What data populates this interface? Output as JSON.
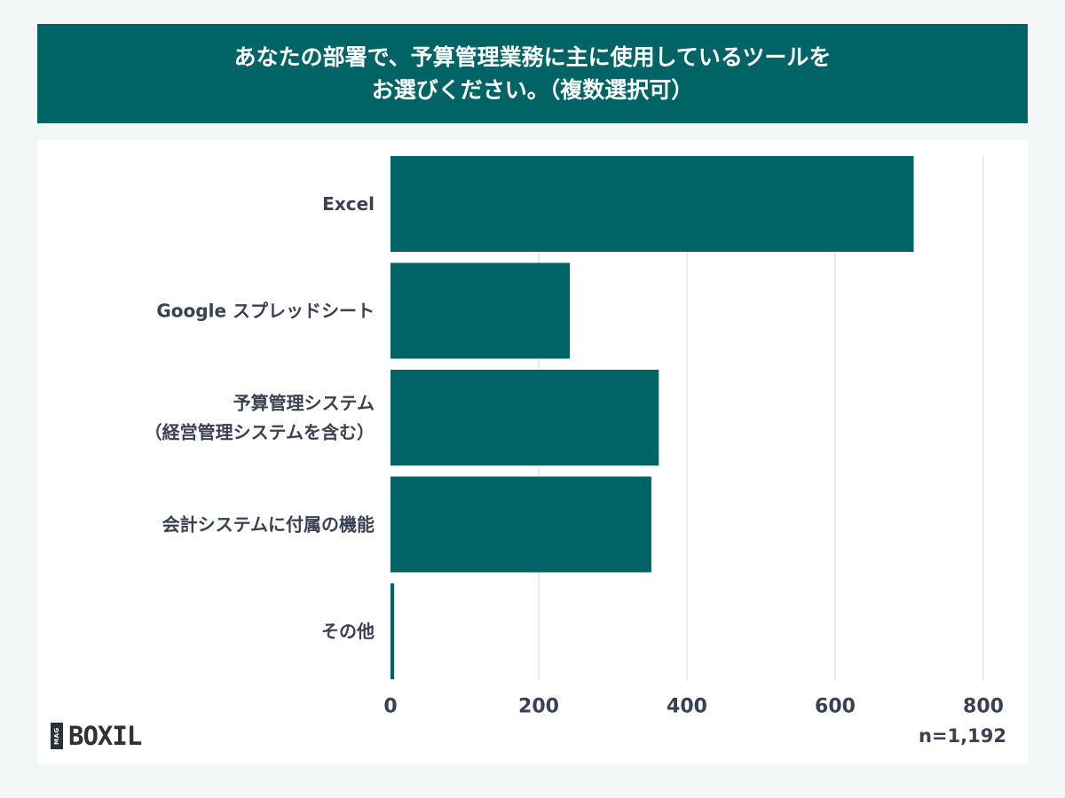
{
  "title": {
    "line1": "あなたの部署で、予算管理業務に主に使用しているツールを",
    "line2": "お選びください。（複数選択可）"
  },
  "chart_data": {
    "type": "bar",
    "orientation": "horizontal",
    "categories": [
      [
        "Excel"
      ],
      [
        "Google スプレッドシート"
      ],
      [
        "予算管理システム",
        "（経営管理システムを含む）"
      ],
      [
        "会計システムに付属の機能"
      ],
      [
        "その他"
      ]
    ],
    "values": [
      706,
      242,
      362,
      352,
      5
    ],
    "xlim": [
      0,
      800
    ],
    "xticks": [
      0,
      200,
      400,
      600,
      800
    ],
    "grid": true,
    "bar_color": "#006466"
  },
  "footer": {
    "logo_badge": "MAG",
    "logo_text": "BOXIL",
    "sample_size": "n=1,192"
  }
}
